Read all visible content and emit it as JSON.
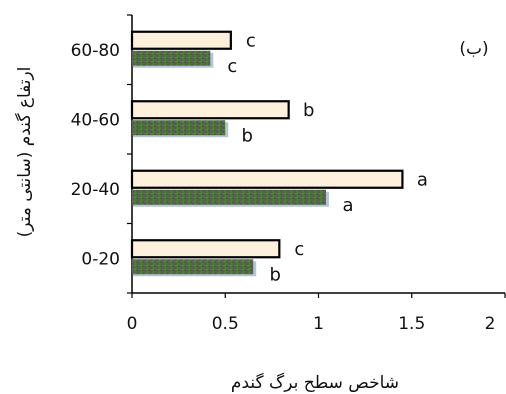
{
  "chart_data": {
    "type": "bar",
    "orientation": "horizontal",
    "panel_label": "(ب)",
    "xlabel": "شاخص سطح برگ گندم",
    "ylabel": "ارتفاع گندم (سانتی متر)",
    "categories": [
      "0-20",
      "20-40",
      "40-60",
      "60-80"
    ],
    "xlim": [
      0,
      2
    ],
    "x_ticks": [
      "0",
      "0.5",
      "1",
      "1.5",
      "2"
    ],
    "grid": false,
    "series": [
      {
        "values": [
          0.79,
          1.45,
          0.84,
          0.53
        ],
        "letters": [
          "c",
          "a",
          "b",
          "c"
        ],
        "color": "#fdf1de"
      },
      {
        "values": [
          0.65,
          1.04,
          0.5,
          0.42
        ],
        "letters": [
          "b",
          "a",
          "b",
          "c"
        ],
        "color": "#4b6a37"
      }
    ]
  }
}
